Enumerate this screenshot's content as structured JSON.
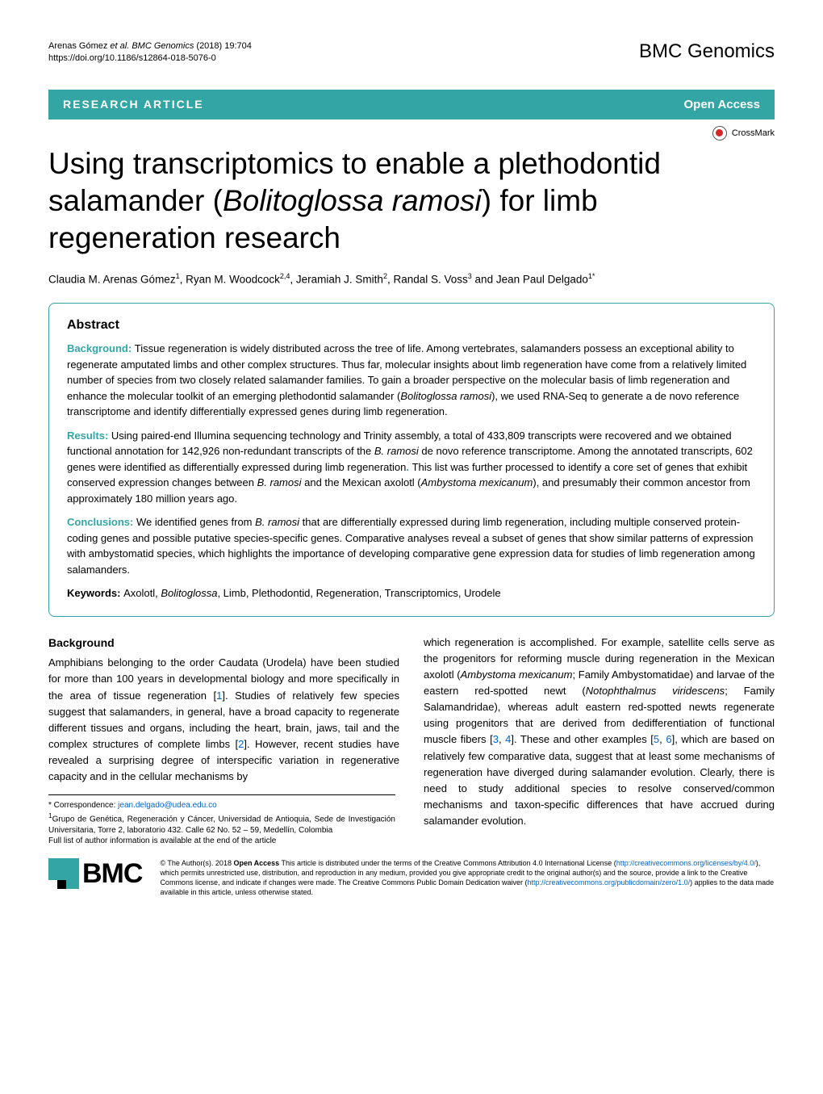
{
  "header": {
    "citation_authors": "Arenas Gómez ",
    "citation_etal": "et al. BMC Genomics ",
    "citation_year": " (2018) 19:704",
    "doi": "https://doi.org/10.1186/s12864-018-5076-0",
    "journal": "BMC Genomics"
  },
  "banner": {
    "left": "RESEARCH ARTICLE",
    "right": "Open Access"
  },
  "crossmark": "CrossMark",
  "title_pre": "Using transcriptomics to enable a plethodontid salamander (",
  "title_species": "Bolitoglossa ramosi",
  "title_post": ") for limb regeneration research",
  "authors": {
    "a1": "Claudia M. Arenas Gómez",
    "s1": "1",
    "a2": ", Ryan M. Woodcock",
    "s2": "2,4",
    "a3": ", Jeramiah J. Smith",
    "s3": "2",
    "a4": ", Randal S. Voss",
    "s4": "3",
    "a5": " and Jean Paul Delgado",
    "s5": "1*"
  },
  "abstract": {
    "heading": "Abstract",
    "bg_label": "Background: ",
    "bg_text1": "Tissue regeneration is widely distributed across the tree of life. Among vertebrates, salamanders possess an exceptional ability to regenerate amputated limbs and other complex structures. Thus far, molecular insights about limb regeneration have come from a relatively limited number of species from two closely related salamander families. To gain a broader perspective on the molecular basis of limb regeneration and enhance the molecular toolkit of an emerging plethodontid salamander (",
    "bg_species": "Bolitoglossa ramosi",
    "bg_text2": "), we used RNA-Seq to generate a de novo reference transcriptome and identify differentially expressed genes during limb regeneration.",
    "res_label": "Results: ",
    "res_text1": "Using paired-end Illumina sequencing technology and Trinity assembly, a total of 433,809 transcripts were recovered and we obtained functional annotation for 142,926 non-redundant transcripts of the ",
    "res_sp1": "B. ramosi",
    "res_text2": " de novo reference transcriptome. Among the annotated transcripts, 602 genes were identified as differentially expressed during limb regeneration",
    "res_dot": ". ",
    "res_text3": "This list was further processed to identify a core set of genes that exhibit conserved expression changes between ",
    "res_sp2": "B. ramosi",
    "res_text4": " and the Mexican axolotl (",
    "res_sp3": "Ambystoma mexicanum",
    "res_text5": "), and presumably their common ancestor from approximately 180 million years ago.",
    "con_label": "Conclusions: ",
    "con_text1": "We identified genes from ",
    "con_sp1": "B. ramosi",
    "con_text2": " that are differentially expressed during limb regeneration, including multiple conserved protein-coding genes and possible putative species-specific genes. Comparative analyses reveal a subset of genes that show similar patterns of expression with ambystomatid species, which highlights the importance of developing comparative gene expression data for studies of limb regeneration among salamanders.",
    "kw_label": "Keywords: ",
    "kw_text1": "Axolotl, ",
    "kw_sp": "Bolitoglossa",
    "kw_text2": ", Limb, Plethodontid, Regeneration, Transcriptomics, Urodele"
  },
  "body": {
    "heading": "Background",
    "col1_p1a": "Amphibians belonging to the order Caudata (Urodela) have been studied for more than 100 years in developmental biology and more specifically in the area of tissue regeneration [",
    "ref1": "1",
    "col1_p1b": "]. Studies of relatively few species suggest that salamanders, in general, have a broad capacity to regenerate different tissues and organs, including the heart, brain, jaws, tail and the complex structures of complete limbs [",
    "ref2": "2",
    "col1_p1c": "]. However, recent studies have revealed a surprising degree of interspecific variation in regenerative capacity and in the cellular mechanisms by",
    "col2_p1a": "which regeneration is accomplished. For example, satellite cells serve as the progenitors for reforming muscle during regeneration in the Mexican axolotl (",
    "col2_sp1": "Ambystoma mexicanum",
    "col2_p1b": "; Family Ambystomatidae) and larvae of the eastern red-spotted newt (",
    "col2_sp2": "Notophthalmus viridescens",
    "col2_p1c": "; Family Salamandridae), whereas adult eastern red-spotted newts regenerate using progenitors that are derived from dedifferentiation of functional muscle fibers [",
    "ref3": "3",
    "col2_comma1": ", ",
    "ref4": "4",
    "col2_p1d": "]. These and other examples [",
    "ref5": "5",
    "col2_comma2": ", ",
    "ref6": "6",
    "col2_p1e": "], which are based on relatively few comparative data, suggest that at least some mechanisms of regeneration have diverged during salamander evolution. Clearly, there is need to study additional species to resolve conserved/common mechanisms and taxon-specific differences that have accrued during salamander evolution."
  },
  "footer": {
    "corr_label": "* Correspondence: ",
    "corr_email": "jean.delgado@udea.edu.co",
    "aff_sup": "1",
    "aff_text": "Grupo de Genética, Regeneración y Cáncer, Universidad de Antioquia, Sede de Investigación Universitaria, Torre 2, laboratorio 432. Calle 62 No. 52 – 59, Medellín, Colombia",
    "full_list": "Full list of author information is available at the end of the article",
    "bmc": "BMC",
    "lic1": "© The Author(s). 2018 ",
    "lic_oa": "Open Access",
    "lic2": " This article is distributed under the terms of the Creative Commons Attribution 4.0 International License (",
    "lic_url1": "http://creativecommons.org/licenses/by/4.0/",
    "lic3": "), which permits unrestricted use, distribution, and reproduction in any medium, provided you give appropriate credit to the original author(s) and the source, provide a link to the Creative Commons license, and indicate if changes were made. The Creative Commons Public Domain Dedication waiver (",
    "lic_url2": "http://creativecommons.org/publicdomain/zero/1.0/",
    "lic4": ") applies to the data made available in this article, unless otherwise stated."
  }
}
